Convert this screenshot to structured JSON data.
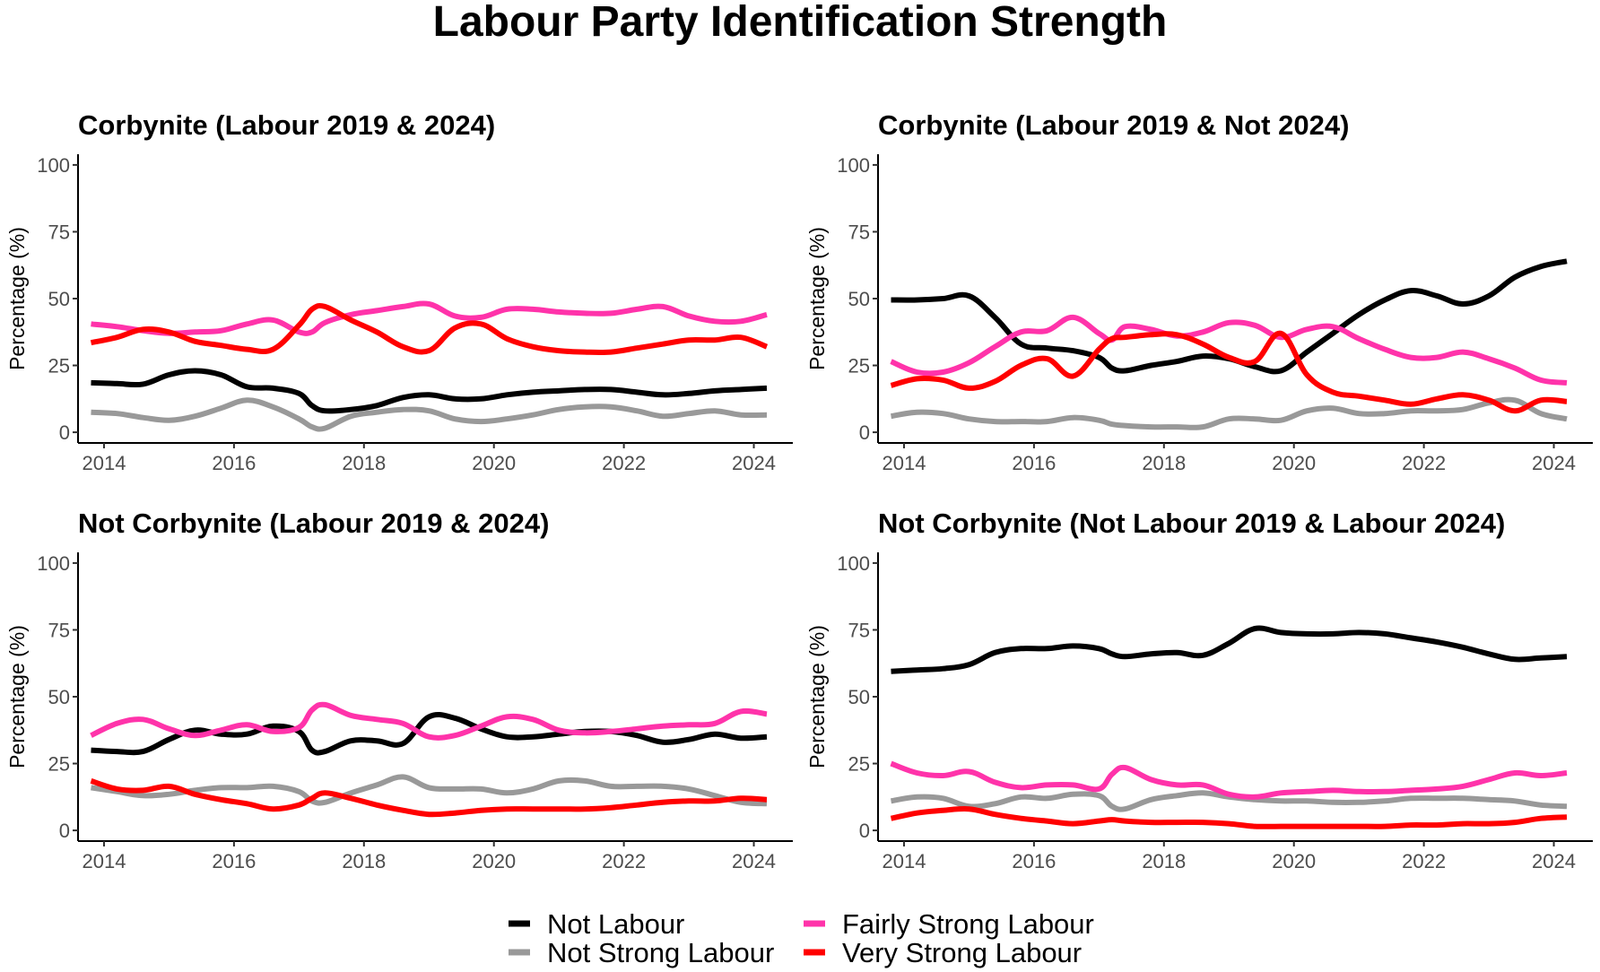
{
  "title": "Labour Party Identification Strength",
  "colors": {
    "Not Labour": "#000000",
    "Not Strong Labour": "#999999",
    "Fairly Strong Labour": "#FF33AA",
    "Very Strong Labour": "#FF0000"
  },
  "legend": {
    "placement": "bottom",
    "entries": [
      "Not Labour",
      "Not Strong Labour",
      "Fairly Strong Labour",
      "Very Strong Labour"
    ]
  },
  "chart_data": [
    {
      "type": "line",
      "title": "Corbynite (Labour 2019 & 2024)",
      "xlabel": "",
      "ylabel": "Percentage (%)",
      "xlim": [
        2013.6,
        2024.6
      ],
      "ylim": [
        -4,
        104
      ],
      "xticks": [
        2014,
        2016,
        2018,
        2020,
        2022,
        2024
      ],
      "yticks": [
        0,
        25,
        50,
        75,
        100
      ],
      "x": [
        2013.8,
        2014.2,
        2014.6,
        2015.0,
        2015.4,
        2015.8,
        2016.2,
        2016.6,
        2017.0,
        2017.2,
        2017.4,
        2017.8,
        2018.2,
        2018.6,
        2019.0,
        2019.4,
        2019.8,
        2020.2,
        2020.6,
        2021.0,
        2021.4,
        2021.8,
        2022.2,
        2022.6,
        2023.0,
        2023.4,
        2023.8,
        2024.2
      ],
      "series": [
        {
          "name": "Not Labour",
          "values": [
            18.5,
            18.2,
            18.0,
            21.5,
            23.0,
            21.5,
            17.0,
            16.5,
            14.5,
            10.0,
            8.0,
            8.5,
            10.0,
            13.0,
            14.0,
            12.5,
            12.5,
            14.0,
            15.0,
            15.5,
            16.0,
            16.0,
            15.0,
            14.0,
            14.5,
            15.5,
            16.0,
            16.5
          ]
        },
        {
          "name": "Not Strong Labour",
          "values": [
            7.5,
            7.0,
            5.5,
            4.5,
            6.0,
            9.0,
            12.0,
            9.5,
            5.0,
            2.0,
            1.5,
            6.0,
            7.5,
            8.5,
            8.0,
            5.0,
            4.0,
            5.0,
            6.5,
            8.5,
            9.5,
            9.5,
            8.0,
            6.0,
            7.0,
            8.0,
            6.5,
            6.5
          ]
        },
        {
          "name": "Fairly Strong Labour",
          "values": [
            40.5,
            39.5,
            38.0,
            37.0,
            37.5,
            38.0,
            40.5,
            42.0,
            37.5,
            37.5,
            41.0,
            44.0,
            45.5,
            47.0,
            48.0,
            43.5,
            43.0,
            46.0,
            46.0,
            45.0,
            44.5,
            44.5,
            46.0,
            47.0,
            43.5,
            41.5,
            41.5,
            44.0
          ]
        },
        {
          "name": "Very Strong Labour",
          "values": [
            33.5,
            35.5,
            38.5,
            37.5,
            34.0,
            32.5,
            31.0,
            31.0,
            40.0,
            46.0,
            47.0,
            42.0,
            37.5,
            32.0,
            30.5,
            39.0,
            40.5,
            35.0,
            32.0,
            30.5,
            30.0,
            30.0,
            31.5,
            33.0,
            34.5,
            34.5,
            35.5,
            32.0
          ]
        }
      ]
    },
    {
      "type": "line",
      "title": "Corbynite (Labour 2019 & Not 2024)",
      "xlabel": "",
      "ylabel": "Percentage (%)",
      "xlim": [
        2013.6,
        2024.6
      ],
      "ylim": [
        -4,
        104
      ],
      "xticks": [
        2014,
        2016,
        2018,
        2020,
        2022,
        2024
      ],
      "yticks": [
        0,
        25,
        50,
        75,
        100
      ],
      "x": [
        2013.8,
        2014.2,
        2014.6,
        2015.0,
        2015.4,
        2015.8,
        2016.2,
        2016.6,
        2017.0,
        2017.2,
        2017.4,
        2017.8,
        2018.2,
        2018.6,
        2019.0,
        2019.4,
        2019.8,
        2020.2,
        2020.6,
        2021.0,
        2021.4,
        2021.8,
        2022.2,
        2022.6,
        2023.0,
        2023.4,
        2023.8,
        2024.2
      ],
      "series": [
        {
          "name": "Not Labour",
          "values": [
            49.5,
            49.5,
            50.0,
            51.0,
            43.0,
            33.0,
            31.5,
            30.5,
            28.0,
            24.0,
            23.0,
            25.0,
            26.5,
            28.5,
            27.5,
            24.5,
            23.0,
            30.0,
            37.0,
            44.0,
            49.5,
            53.0,
            51.0,
            48.0,
            51.0,
            58.0,
            62.0,
            64.0
          ]
        },
        {
          "name": "Not Strong Labour",
          "values": [
            6.0,
            7.5,
            7.0,
            5.0,
            4.0,
            4.0,
            4.0,
            5.5,
            4.5,
            3.0,
            2.5,
            2.0,
            2.0,
            2.0,
            5.0,
            5.0,
            4.5,
            8.0,
            9.0,
            7.0,
            7.0,
            8.0,
            8.0,
            8.5,
            11.0,
            12.0,
            7.0,
            5.0
          ]
        },
        {
          "name": "Fairly Strong Labour",
          "values": [
            26.5,
            22.5,
            22.5,
            26.0,
            32.0,
            37.5,
            38.0,
            43.0,
            37.0,
            34.5,
            39.5,
            38.5,
            36.0,
            37.5,
            41.0,
            40.0,
            35.5,
            38.5,
            39.5,
            35.0,
            31.0,
            28.0,
            28.0,
            30.0,
            27.5,
            24.0,
            19.5,
            18.5
          ]
        },
        {
          "name": "Very Strong Labour",
          "values": [
            17.5,
            20.0,
            19.5,
            16.5,
            19.0,
            25.0,
            27.5,
            21.0,
            31.0,
            35.0,
            35.5,
            36.5,
            36.5,
            33.0,
            28.0,
            26.5,
            37.0,
            21.5,
            15.0,
            13.5,
            12.0,
            10.5,
            12.5,
            14.0,
            12.0,
            8.0,
            12.0,
            11.5
          ]
        }
      ]
    },
    {
      "type": "line",
      "title": "Not Corbynite (Labour 2019 & 2024)",
      "xlabel": "",
      "ylabel": "Percentage (%)",
      "xlim": [
        2013.6,
        2024.6
      ],
      "ylim": [
        -4,
        104
      ],
      "xticks": [
        2014,
        2016,
        2018,
        2020,
        2022,
        2024
      ],
      "yticks": [
        0,
        25,
        50,
        75,
        100
      ],
      "x": [
        2013.8,
        2014.2,
        2014.6,
        2015.0,
        2015.4,
        2015.8,
        2016.2,
        2016.6,
        2017.0,
        2017.2,
        2017.4,
        2017.8,
        2018.2,
        2018.6,
        2019.0,
        2019.4,
        2019.8,
        2020.2,
        2020.6,
        2021.0,
        2021.4,
        2021.8,
        2022.2,
        2022.6,
        2023.0,
        2023.4,
        2023.8,
        2024.2
      ],
      "series": [
        {
          "name": "Not Labour",
          "values": [
            30.0,
            29.5,
            29.5,
            34.0,
            37.5,
            36.0,
            36.0,
            39.0,
            37.0,
            30.0,
            29.5,
            33.5,
            33.5,
            32.5,
            42.5,
            42.0,
            38.0,
            35.0,
            35.0,
            36.0,
            37.0,
            37.0,
            35.5,
            33.0,
            34.0,
            36.0,
            34.5,
            35.0
          ]
        },
        {
          "name": "Not Strong Labour",
          "values": [
            16.0,
            14.5,
            13.0,
            13.5,
            15.0,
            16.0,
            16.0,
            16.5,
            14.5,
            11.0,
            10.5,
            14.0,
            17.0,
            20.0,
            16.0,
            15.5,
            15.5,
            14.0,
            15.5,
            18.5,
            18.5,
            16.5,
            16.5,
            16.5,
            15.5,
            13.0,
            10.5,
            10.0
          ]
        },
        {
          "name": "Fairly Strong Labour",
          "values": [
            35.5,
            40.0,
            41.5,
            38.0,
            35.5,
            37.5,
            39.5,
            37.0,
            38.5,
            45.0,
            47.0,
            43.0,
            41.5,
            40.0,
            35.0,
            35.5,
            39.0,
            42.5,
            41.5,
            37.5,
            36.5,
            37.0,
            38.0,
            39.0,
            39.5,
            40.0,
            44.5,
            43.5
          ]
        },
        {
          "name": "Very Strong Labour",
          "values": [
            18.5,
            15.5,
            15.0,
            16.5,
            13.5,
            11.5,
            10.0,
            8.0,
            9.5,
            12.0,
            14.0,
            12.0,
            9.5,
            7.5,
            6.0,
            6.5,
            7.5,
            8.0,
            8.0,
            8.0,
            8.0,
            8.5,
            9.5,
            10.5,
            11.0,
            11.0,
            12.0,
            11.5
          ]
        }
      ]
    },
    {
      "type": "line",
      "title": "Not Corbynite (Not Labour 2019 & Labour 2024)",
      "xlabel": "",
      "ylabel": "Percentage (%)",
      "xlim": [
        2013.6,
        2024.6
      ],
      "ylim": [
        -4,
        104
      ],
      "xticks": [
        2014,
        2016,
        2018,
        2020,
        2022,
        2024
      ],
      "yticks": [
        0,
        25,
        50,
        75,
        100
      ],
      "x": [
        2013.8,
        2014.2,
        2014.6,
        2015.0,
        2015.4,
        2015.8,
        2016.2,
        2016.6,
        2017.0,
        2017.2,
        2017.4,
        2017.8,
        2018.2,
        2018.6,
        2019.0,
        2019.4,
        2019.8,
        2020.2,
        2020.6,
        2021.0,
        2021.4,
        2021.8,
        2022.2,
        2022.6,
        2023.0,
        2023.4,
        2023.8,
        2024.2
      ],
      "series": [
        {
          "name": "Not Labour",
          "values": [
            59.5,
            60.0,
            60.5,
            62.0,
            66.5,
            68.0,
            68.0,
            69.0,
            68.0,
            66.0,
            65.0,
            66.0,
            66.5,
            65.5,
            70.0,
            75.5,
            74.0,
            73.5,
            73.5,
            74.0,
            73.5,
            72.0,
            70.5,
            68.5,
            66.0,
            64.0,
            64.5,
            65.0
          ]
        },
        {
          "name": "Not Strong Labour",
          "values": [
            11.0,
            12.5,
            12.0,
            9.0,
            10.0,
            12.5,
            12.0,
            13.5,
            13.0,
            9.0,
            8.0,
            11.5,
            13.0,
            14.0,
            12.5,
            11.5,
            11.0,
            11.0,
            10.5,
            10.5,
            11.0,
            12.0,
            12.0,
            12.0,
            11.5,
            11.0,
            9.5,
            9.0
          ]
        },
        {
          "name": "Fairly Strong Labour",
          "values": [
            25.0,
            21.5,
            20.5,
            22.0,
            18.0,
            16.0,
            17.0,
            17.0,
            15.5,
            21.0,
            23.5,
            19.0,
            17.0,
            17.0,
            13.5,
            12.5,
            14.0,
            14.5,
            15.0,
            14.5,
            14.5,
            15.0,
            15.5,
            16.5,
            19.0,
            21.5,
            20.5,
            21.5
          ]
        },
        {
          "name": "Very Strong Labour",
          "values": [
            4.5,
            6.5,
            7.5,
            8.0,
            6.0,
            4.5,
            3.5,
            2.5,
            3.5,
            4.0,
            3.5,
            3.0,
            3.0,
            3.0,
            2.5,
            1.5,
            1.5,
            1.5,
            1.5,
            1.5,
            1.5,
            2.0,
            2.0,
            2.5,
            2.5,
            3.0,
            4.5,
            5.0
          ]
        }
      ]
    }
  ]
}
